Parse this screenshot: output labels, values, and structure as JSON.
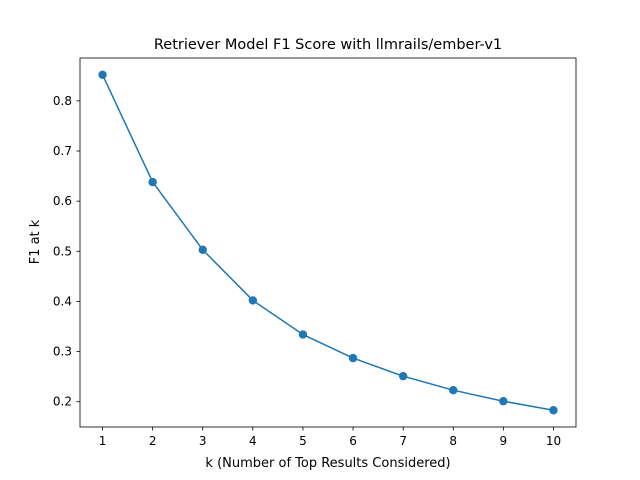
{
  "chart_data": {
    "type": "line",
    "title": "Retriever Model F1 Score with llmrails/ember-v1",
    "xlabel": "k (Number of Top Results Considered)",
    "ylabel": "F1 at k",
    "x": [
      1,
      2,
      3,
      4,
      5,
      6,
      7,
      8,
      9,
      10
    ],
    "series": [
      {
        "values": [
          0.852,
          0.638,
          0.503,
          0.402,
          0.334,
          0.287,
          0.251,
          0.223,
          0.201,
          0.183
        ],
        "color": "#1f77b4",
        "marker": "circle"
      }
    ],
    "xticks": [
      "1",
      "2",
      "3",
      "4",
      "5",
      "6",
      "7",
      "8",
      "9",
      "10"
    ],
    "yticks": [
      "0.2",
      "0.3",
      "0.4",
      "0.5",
      "0.6",
      "0.7",
      "0.8"
    ],
    "xlim": [
      0.55,
      10.45
    ],
    "ylim": [
      0.1496,
      0.8855
    ],
    "grid": false,
    "legend": "none"
  }
}
